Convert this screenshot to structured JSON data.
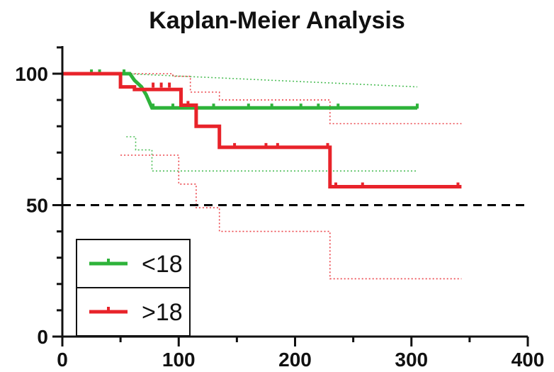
{
  "chart_data": {
    "type": "line",
    "title": "Kaplan-Meier Analysis",
    "xlabel": "",
    "ylabel": "",
    "xlim": [
      0,
      400
    ],
    "ylim": [
      0,
      110
    ],
    "x_ticks": [
      0,
      100,
      200,
      300,
      400
    ],
    "y_ticks": [
      0,
      50,
      100
    ],
    "grid": false,
    "legend_position": "bottom-left",
    "reference_line": {
      "y": 50,
      "style": "dashed",
      "color": "#000000"
    },
    "series": [
      {
        "name": "<18",
        "color": "#2eb33a",
        "steps": [
          [
            0,
            100
          ],
          [
            58,
            100
          ],
          [
            62,
            97.5
          ],
          [
            68,
            95
          ],
          [
            72,
            92
          ],
          [
            77,
            87
          ],
          [
            305,
            87
          ]
        ],
        "censors": [
          [
            25,
            100
          ],
          [
            32,
            100
          ],
          [
            53,
            100
          ],
          [
            78,
            87
          ],
          [
            95,
            87
          ],
          [
            105,
            87
          ],
          [
            110,
            87
          ],
          [
            130,
            87
          ],
          [
            160,
            87
          ],
          [
            180,
            87
          ],
          [
            205,
            87
          ],
          [
            220,
            87
          ],
          [
            237,
            87
          ],
          [
            305,
            87
          ]
        ],
        "ci_upper": [
          [
            55,
            100
          ],
          [
            305,
            95
          ]
        ],
        "ci_lower": [
          [
            55,
            76
          ],
          [
            63,
            76
          ],
          [
            63,
            71
          ],
          [
            77,
            71
          ],
          [
            77,
            63
          ],
          [
            305,
            63
          ]
        ]
      },
      {
        "name": ">18",
        "color": "#e8232a",
        "steps": [
          [
            0,
            100
          ],
          [
            50,
            100
          ],
          [
            50,
            95
          ],
          [
            62,
            95
          ],
          [
            62,
            94
          ],
          [
            102,
            94
          ],
          [
            102,
            88
          ],
          [
            115,
            88
          ],
          [
            115,
            80
          ],
          [
            135,
            80
          ],
          [
            135,
            72
          ],
          [
            230,
            72
          ],
          [
            230,
            57
          ],
          [
            343,
            57
          ]
        ],
        "censors": [
          [
            78,
            95
          ],
          [
            85,
            95
          ],
          [
            92,
            95
          ],
          [
            108,
            88
          ],
          [
            148,
            72
          ],
          [
            175,
            72
          ],
          [
            185,
            72
          ],
          [
            228,
            72
          ],
          [
            235,
            57
          ],
          [
            258,
            57
          ],
          [
            340,
            57
          ]
        ],
        "ci_upper": [
          [
            50,
            100
          ],
          [
            95,
            100
          ],
          [
            95,
            99
          ],
          [
            110,
            99
          ],
          [
            110,
            93
          ],
          [
            135,
            93
          ],
          [
            135,
            90
          ],
          [
            230,
            90
          ],
          [
            230,
            81
          ],
          [
            343,
            81
          ]
        ],
        "ci_lower": [
          [
            50,
            69
          ],
          [
            100,
            69
          ],
          [
            100,
            58
          ],
          [
            115,
            58
          ],
          [
            115,
            49
          ],
          [
            135,
            49
          ],
          [
            135,
            40
          ],
          [
            230,
            40
          ],
          [
            230,
            22
          ],
          [
            343,
            22
          ]
        ]
      }
    ]
  }
}
